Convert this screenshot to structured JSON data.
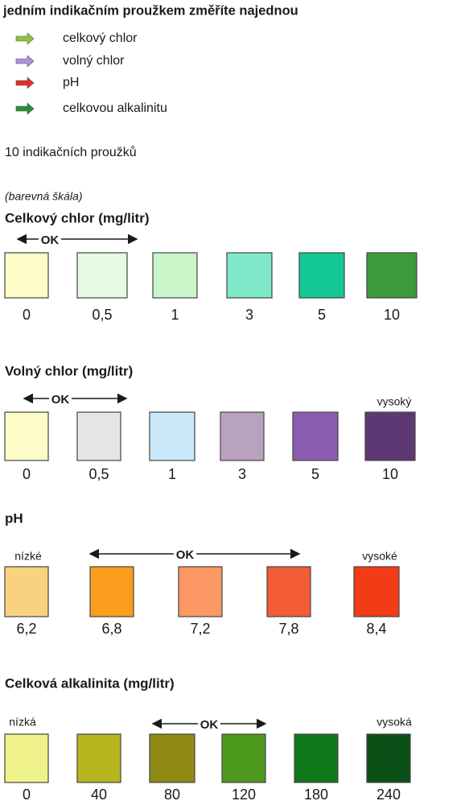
{
  "header": {
    "title": "jedním indikačním proužkem změříte najednou"
  },
  "legend": [
    {
      "label": "celkový chlor",
      "color": "#8dc63f"
    },
    {
      "label": "volný chlor",
      "color": "#b48ee0"
    },
    {
      "label": "pH",
      "color": "#e0302a"
    },
    {
      "label": "celkovou alkalinitu",
      "color": "#2e8b3a"
    }
  ],
  "strips": "10 indikačních proužků",
  "scale_note": "(barevná škála)",
  "sections": [
    {
      "title": "Celkový chlor (mg/litr)",
      "ok": "OK",
      "swatches": [
        {
          "label": "0",
          "color": "#fdfbc8"
        },
        {
          "label": "0,5",
          "color": "#e6f9e3"
        },
        {
          "label": "1",
          "color": "#c8f6c8"
        },
        {
          "label": "3",
          "color": "#7fe8c8"
        },
        {
          "label": "5",
          "color": "#14c896"
        },
        {
          "label": "10",
          "color": "#3a9a3c"
        }
      ]
    },
    {
      "title": "Volný chlor (mg/litr)",
      "ok": "OK",
      "high": "vysoký",
      "swatches": [
        {
          "label": "0",
          "color": "#fdfbc8"
        },
        {
          "label": "0,5",
          "color": "#e6e6e6"
        },
        {
          "label": "1",
          "color": "#cce8fb"
        },
        {
          "label": "3",
          "color": "#b9a2bd"
        },
        {
          "label": "5",
          "color": "#8a5cb0"
        },
        {
          "label": "10",
          "color": "#5e3872"
        }
      ]
    },
    {
      "title": "pH",
      "ok": "OK",
      "low": "nízké",
      "high": "vysoké",
      "swatches": [
        {
          "label": "6,2",
          "color": "#f8d27e"
        },
        {
          "label": "6,8",
          "color": "#fb9e1e"
        },
        {
          "label": "7,2",
          "color": "#fb9864"
        },
        {
          "label": "7,8",
          "color": "#f25c36"
        },
        {
          "label": "8,4",
          "color": "#f23c18"
        }
      ]
    },
    {
      "title": "Celková alkalinita (mg/litr)",
      "ok": "OK",
      "low": "nízká",
      "high": "vysoká",
      "swatches": [
        {
          "label": "0",
          "color": "#f0f28a"
        },
        {
          "label": "40",
          "color": "#b7b51e"
        },
        {
          "label": "80",
          "color": "#8f8a14"
        },
        {
          "label": "120",
          "color": "#4e9a1e"
        },
        {
          "label": "180",
          "color": "#11781c"
        },
        {
          "label": "240",
          "color": "#0b5016"
        }
      ]
    }
  ]
}
